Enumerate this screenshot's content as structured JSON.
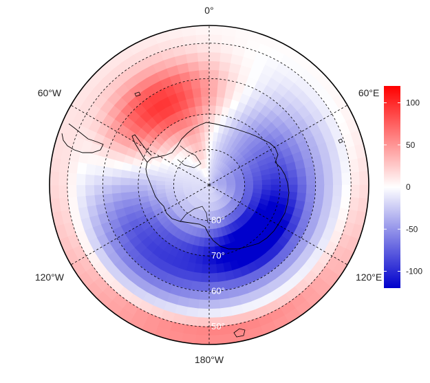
{
  "map": {
    "projection": "south-polar-stereographic",
    "palette": {
      "low": "#0000cc",
      "mid": "#ffffff",
      "high": "#ff0000"
    },
    "longitude_labels": [
      {
        "lon": 0,
        "text": "0°"
      },
      {
        "lon": -60,
        "text": "60°W"
      },
      {
        "lon": 60,
        "text": "60°E"
      },
      {
        "lon": -120,
        "text": "120°W"
      },
      {
        "lon": 120,
        "text": "120°E"
      },
      {
        "lon": 180,
        "text": "180°W"
      }
    ],
    "latitude_labels": [
      {
        "lat": -80,
        "text": "80°"
      },
      {
        "lat": -70,
        "text": "70°"
      },
      {
        "lat": -60,
        "text": "60°"
      },
      {
        "lat": -50,
        "text": "50°"
      }
    ],
    "latitude_circles": [
      -80,
      -70,
      -60,
      -50
    ],
    "meridians": [
      0,
      60,
      120,
      180,
      240,
      300
    ],
    "extent_lat": -45
  },
  "colorbar": {
    "min": -120,
    "max": 120,
    "ticks": [
      {
        "value": 100,
        "text": "100"
      },
      {
        "value": 50,
        "text": "50"
      },
      {
        "value": 0,
        "text": "0"
      },
      {
        "value": -50,
        "text": "-50"
      },
      {
        "value": -100,
        "text": "-100"
      }
    ]
  }
}
